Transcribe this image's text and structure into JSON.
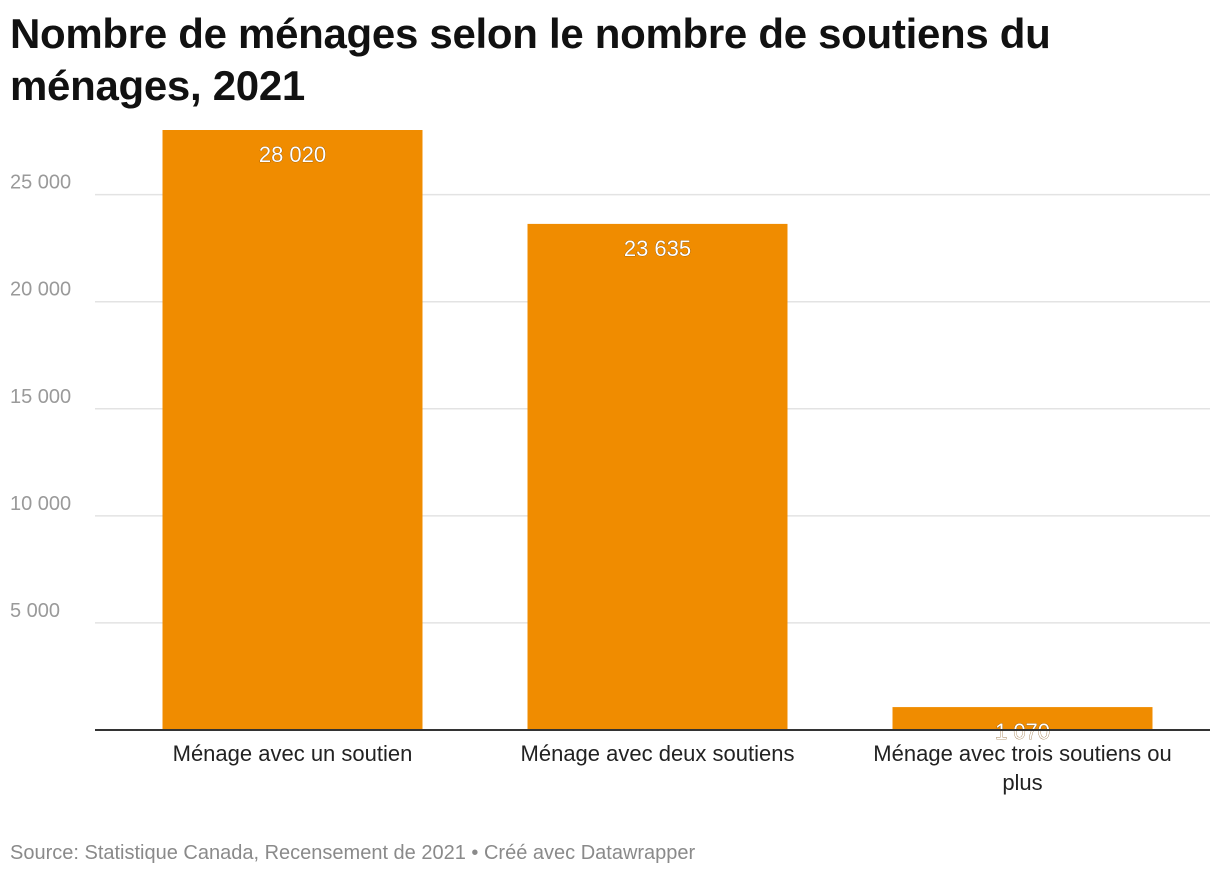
{
  "chart_data": {
    "type": "bar",
    "title": "Nombre de ménages selon le nombre de soutiens du ménages, 2021",
    "categories": [
      [
        "Ménage avec un soutien"
      ],
      [
        "Ménage avec deux soutiens"
      ],
      [
        "Ménage avec trois soutiens ou",
        "plus"
      ]
    ],
    "values": [
      28020,
      23635,
      1070
    ],
    "value_labels": [
      "28 020",
      "23 635",
      "1 070"
    ],
    "yticks": [
      5000,
      10000,
      15000,
      20000,
      25000
    ],
    "ytick_labels": [
      "5 000",
      "10 000",
      "15 000",
      "20 000",
      "25 000"
    ],
    "ylim": [
      0,
      28020
    ],
    "grid": true,
    "bar_color": "#f08c00"
  },
  "footer": {
    "source": "Source: Statistique Canada, Recensement de 2021",
    "separator": " • ",
    "credit": "Créé avec Datawrapper"
  }
}
